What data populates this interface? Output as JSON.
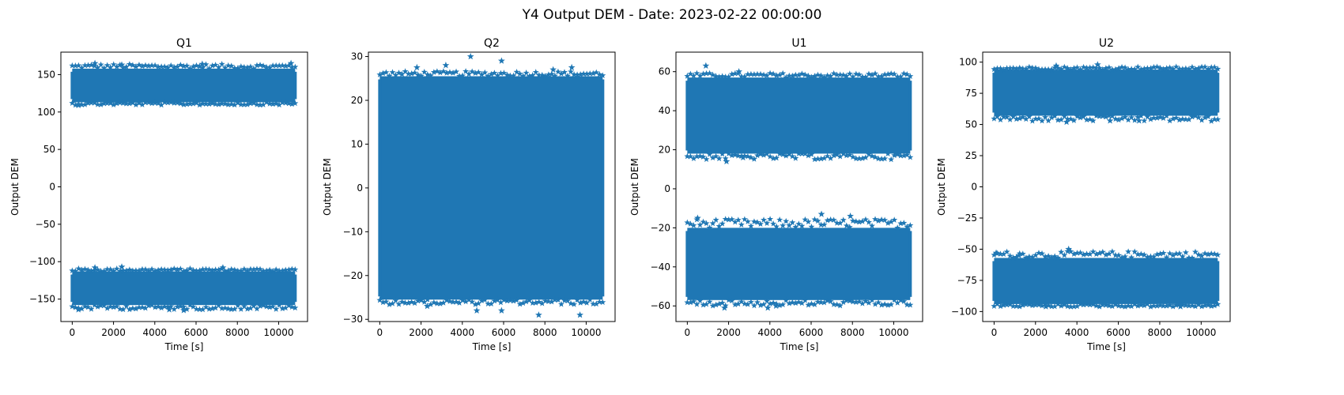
{
  "figure": {
    "title": "Y4 Output DEM - Date: 2023-02-22 00:00:00"
  },
  "chart_data": [
    {
      "type": "scatter",
      "title": "Q1",
      "xlabel": "Time [s]",
      "ylabel": "Output DEM",
      "marker": "star",
      "color": "#1f77b4",
      "xlim": [
        -550,
        11400
      ],
      "ylim": [
        -180,
        180
      ],
      "xticks": [
        0,
        2000,
        4000,
        6000,
        8000,
        10000
      ],
      "yticks": [
        150,
        100,
        50,
        0,
        -50,
        -100,
        -150
      ],
      "ytick_labels": [
        "150",
        "100",
        "50",
        "0",
        "−50",
        "−100",
        "−150"
      ],
      "time_range": [
        0,
        10800
      ],
      "clusters": [
        {
          "body_min": 113,
          "body_max": 158,
          "outer_min": 108,
          "outer_max": 166
        },
        {
          "body_min": -158,
          "body_max": -113,
          "outer_min": -166,
          "outer_max": -108
        }
      ],
      "outliers": [
        [
          1100,
          165
        ],
        [
          2400,
          163
        ],
        [
          6300,
          164
        ],
        [
          10600,
          165
        ],
        [
          300,
          109
        ],
        [
          1100,
          -108
        ],
        [
          2400,
          -107
        ],
        [
          7300,
          -108
        ],
        [
          300,
          -164
        ],
        [
          5400,
          -165
        ],
        [
          4700,
          -164
        ]
      ]
    },
    {
      "type": "scatter",
      "title": "Q2",
      "xlabel": "Time [s]",
      "ylabel": "Output DEM",
      "marker": "star",
      "color": "#1f77b4",
      "xlim": [
        -550,
        11400
      ],
      "ylim": [
        -30.5,
        31
      ],
      "xticks": [
        0,
        2000,
        4000,
        6000,
        8000,
        10000
      ],
      "yticks": [
        30,
        20,
        10,
        0,
        -10,
        -20,
        -30
      ],
      "ytick_labels": [
        "30",
        "20",
        "10",
        "0",
        "−10",
        "−20",
        "−30"
      ],
      "time_range": [
        0,
        10800
      ],
      "clusters": [
        {
          "body_min": -25.5,
          "body_max": 25.5,
          "outer_min": -27,
          "outer_max": 27
        }
      ],
      "outliers": [
        [
          4400,
          30
        ],
        [
          5900,
          29
        ],
        [
          3200,
          28
        ],
        [
          1800,
          27.5
        ],
        [
          9300,
          27.5
        ],
        [
          8400,
          27
        ],
        [
          7700,
          -29
        ],
        [
          9700,
          -29
        ],
        [
          5900,
          -28
        ],
        [
          2300,
          -27
        ],
        [
          4700,
          -28
        ]
      ]
    },
    {
      "type": "scatter",
      "title": "U1",
      "xlabel": "Time [s]",
      "ylabel": "Output DEM",
      "marker": "star",
      "color": "#1f77b4",
      "xlim": [
        -550,
        11400
      ],
      "ylim": [
        -68,
        70
      ],
      "xticks": [
        0,
        2000,
        4000,
        6000,
        8000,
        10000
      ],
      "yticks": [
        60,
        40,
        20,
        0,
        -20,
        -40,
        -60
      ],
      "ytick_labels": [
        "60",
        "40",
        "20",
        "0",
        "−20",
        "−40",
        "−60"
      ],
      "time_range": [
        0,
        10800
      ],
      "clusters": [
        {
          "body_min": 18,
          "body_max": 57,
          "outer_min": 14,
          "outer_max": 60
        },
        {
          "body_min": -57,
          "body_max": -20,
          "outer_min": -61,
          "outer_max": -14
        }
      ],
      "outliers": [
        [
          900,
          63
        ],
        [
          2500,
          60
        ],
        [
          1900,
          14
        ],
        [
          2700,
          16
        ],
        [
          500,
          -15
        ],
        [
          6500,
          -13
        ],
        [
          7900,
          -14
        ],
        [
          1800,
          -61
        ],
        [
          3900,
          -61
        ],
        [
          4300,
          -60
        ]
      ]
    },
    {
      "type": "scatter",
      "title": "U2",
      "xlabel": "Time [s]",
      "ylabel": "Output DEM",
      "marker": "star",
      "color": "#1f77b4",
      "xlim": [
        -550,
        11400
      ],
      "ylim": [
        -108,
        108
      ],
      "xticks": [
        0,
        2000,
        4000,
        6000,
        8000,
        10000
      ],
      "yticks": [
        100,
        75,
        50,
        25,
        0,
        -25,
        -50,
        -75,
        -100
      ],
      "ytick_labels": [
        "100",
        "75",
        "50",
        "25",
        "0",
        "−25",
        "−50",
        "−75",
        "−100"
      ],
      "time_range": [
        0,
        10800
      ],
      "clusters": [
        {
          "body_min": 57,
          "body_max": 94,
          "outer_min": 51,
          "outer_max": 97
        },
        {
          "body_min": -94,
          "body_max": -57,
          "outer_min": -97,
          "outer_max": -50
        }
      ],
      "outliers": [
        [
          5000,
          98
        ],
        [
          3000,
          97
        ],
        [
          3500,
          52
        ],
        [
          5600,
          53
        ],
        [
          7000,
          53
        ],
        [
          3600,
          -50
        ],
        [
          100,
          -53
        ],
        [
          1200,
          -55
        ],
        [
          2500,
          -96
        ],
        [
          9000,
          -96
        ]
      ]
    }
  ]
}
